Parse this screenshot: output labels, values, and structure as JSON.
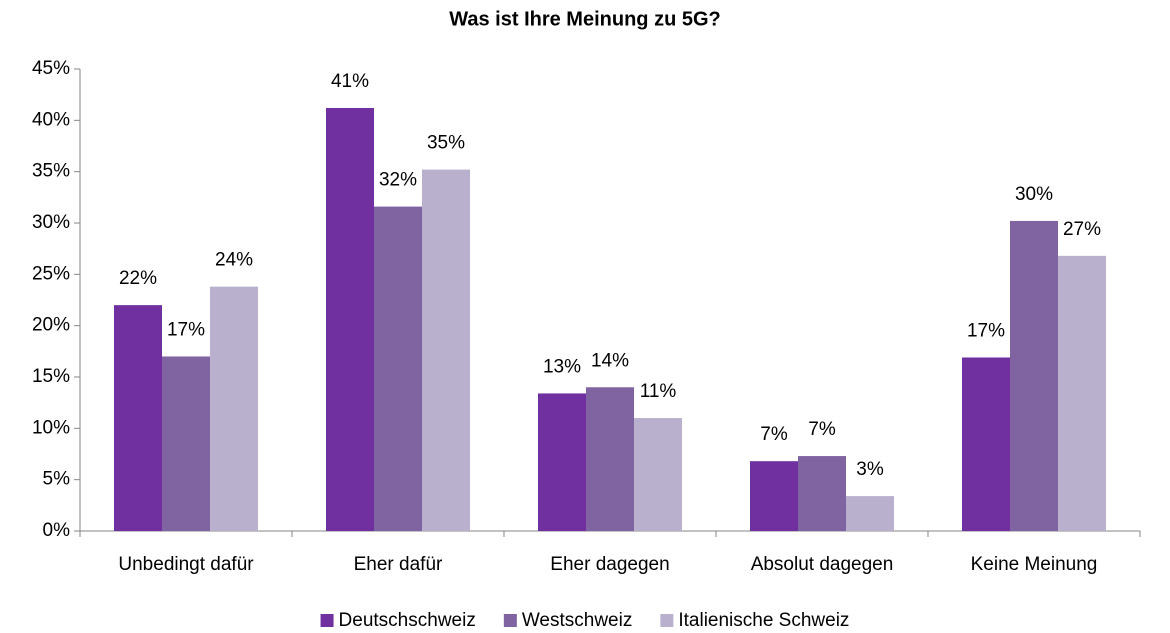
{
  "chart_data": {
    "type": "bar",
    "title": "Was ist Ihre Meinung zu 5G?",
    "categories": [
      "Unbedingt dafür",
      "Eher dafür",
      "Eher dagegen",
      "Absolut dagegen",
      "Keine Meinung"
    ],
    "series": [
      {
        "name": "Deutschschweiz",
        "color": "#7030a0",
        "values": [
          22.0,
          41.2,
          13.4,
          6.8,
          16.9
        ],
        "value_labels": [
          "22%",
          "41%",
          "13%",
          "7%",
          "17%"
        ]
      },
      {
        "name": "Westschweiz",
        "color": "#8064a2",
        "values": [
          17.0,
          31.6,
          14.0,
          7.3,
          30.2
        ],
        "value_labels": [
          "17%",
          "32%",
          "14%",
          "7%",
          "30%"
        ]
      },
      {
        "name": "Italienische Schweiz",
        "color": "#b9b0cd",
        "values": [
          23.8,
          35.2,
          11.0,
          3.4,
          26.8
        ],
        "value_labels": [
          "24%",
          "35%",
          "11%",
          "3%",
          "27%"
        ]
      }
    ],
    "ylim": [
      0,
      45
    ],
    "yticks": [
      {
        "value": 0,
        "label": "0%"
      },
      {
        "value": 5,
        "label": "5%"
      },
      {
        "value": 10,
        "label": "10%"
      },
      {
        "value": 15,
        "label": "15%"
      },
      {
        "value": 20,
        "label": "20%"
      },
      {
        "value": 25,
        "label": "25%"
      },
      {
        "value": 30,
        "label": "30%"
      },
      {
        "value": 35,
        "label": "35%"
      },
      {
        "value": 40,
        "label": "40%"
      },
      {
        "value": 45,
        "label": "45%"
      }
    ],
    "legend": "bottom"
  }
}
